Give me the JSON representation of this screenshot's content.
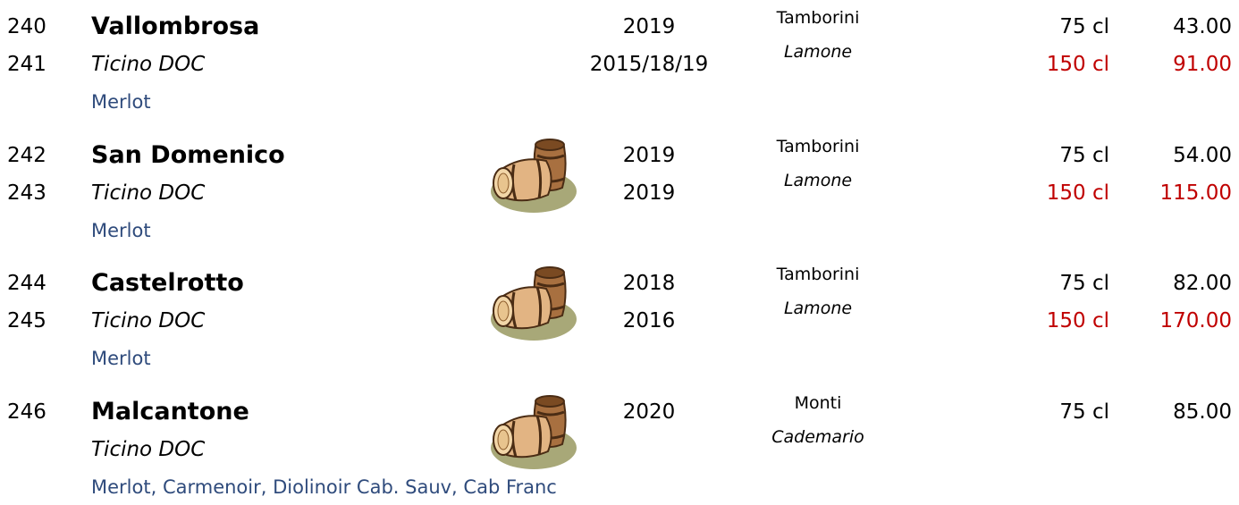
{
  "wines": [
    {
      "numbers": [
        "240",
        "241"
      ],
      "name": "Vallombrosa",
      "appellation": "Ticino DOC",
      "grapes": "Merlot",
      "barrel": false,
      "vintages": [
        "2019",
        "2015/18/19"
      ],
      "producer": "Tamborini",
      "location": "Lamone",
      "offers": [
        {
          "size": "75 cl",
          "price": "43.00"
        },
        {
          "size": "150 cl",
          "price": "91.00"
        }
      ]
    },
    {
      "numbers": [
        "242",
        "243"
      ],
      "name": "San Domenico",
      "appellation": "Ticino DOC",
      "grapes": "Merlot",
      "barrel": true,
      "vintages": [
        "2019",
        "2019"
      ],
      "producer": "Tamborini",
      "location": "Lamone",
      "offers": [
        {
          "size": "75 cl",
          "price": "54.00"
        },
        {
          "size": "150 cl",
          "price": "115.00"
        }
      ]
    },
    {
      "numbers": [
        "244",
        "245"
      ],
      "name": "Castelrotto",
      "appellation": "Ticino DOC",
      "grapes": "Merlot",
      "barrel": true,
      "vintages": [
        "2018",
        "2016"
      ],
      "producer": "Tamborini",
      "location": "Lamone",
      "offers": [
        {
          "size": "75 cl",
          "price": "82.00"
        },
        {
          "size": "150 cl",
          "price": "170.00"
        }
      ]
    },
    {
      "numbers": [
        "246"
      ],
      "name": "Malcantone",
      "appellation": "Ticino DOC",
      "grapes": "Merlot, Carmenoir, Diolinoir Cab. Sauv, Cab Franc",
      "barrel": true,
      "vintages": [
        "2020"
      ],
      "producer": "Monti",
      "location": "Cademario",
      "offers": [
        {
          "size": "75 cl",
          "price": "85.00"
        }
      ]
    }
  ]
}
